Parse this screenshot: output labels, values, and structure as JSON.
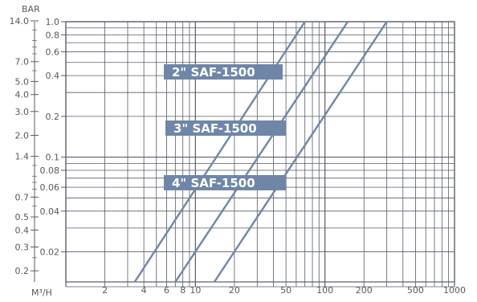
{
  "chart_data": {
    "type": "line",
    "title": "",
    "ylabel_top": "BAR",
    "xlabel": "M³/H",
    "x_scale": "log",
    "y_scale": "log",
    "xlim": [
      1,
      1000
    ],
    "ylim": [
      0.012,
      1.0
    ],
    "x_ticks": [
      2,
      4,
      6,
      8,
      10,
      20,
      50,
      100,
      200,
      500,
      1000
    ],
    "x_tick_labels": [
      "2",
      "4",
      "6",
      "8",
      "10",
      "20",
      "50",
      "100",
      "200",
      "500",
      "1000"
    ],
    "y_ticks_bar": [
      1.0,
      0.8,
      0.6,
      0.4,
      0.2,
      0.1,
      0.08,
      0.06,
      0.04,
      0.02
    ],
    "y_tick_labels_bar": [
      "1.0",
      "0.8",
      "0.6",
      "0.4",
      "0.2",
      "0.1",
      "0.08",
      "0.06",
      "0.04",
      "0.02"
    ],
    "y_ticks_secondary": [
      14.0,
      7.0,
      5.0,
      4.0,
      3.0,
      2.0,
      1.4,
      0.7,
      0.5,
      0.4,
      0.3,
      0.2
    ],
    "y_tick_labels_secondary": [
      "14.0",
      "7.0",
      "5.0",
      "4.0",
      "3.0",
      "2.0",
      "1.4",
      "0.7",
      "0.5",
      "0.4",
      "0.3",
      "0.2"
    ],
    "grid": true,
    "series": [
      {
        "name": "2\" SAF-1500",
        "x": [
          3.4,
          70
        ],
        "y": [
          0.012,
          1.0
        ]
      },
      {
        "name": "3\" SAF-1500",
        "x": [
          7.0,
          150
        ],
        "y": [
          0.012,
          1.0
        ]
      },
      {
        "name": "4\" SAF-1500",
        "x": [
          14,
          300
        ],
        "y": [
          0.012,
          1.0
        ]
      }
    ],
    "colors": {
      "line": "#6f86a8",
      "grid": "#565d66",
      "tag": "#6f86a8"
    }
  }
}
